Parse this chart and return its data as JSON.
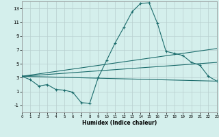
{
  "xlabel": "Humidex (Indice chaleur)",
  "bg_color": "#d4efec",
  "grid_color": "#b8cece",
  "line_color": "#1a6b6b",
  "xlim": [
    0,
    23
  ],
  "ylim": [
    -2.0,
    14.0
  ],
  "xticks": [
    0,
    1,
    2,
    3,
    4,
    5,
    6,
    7,
    8,
    9,
    10,
    11,
    12,
    13,
    14,
    15,
    16,
    17,
    18,
    19,
    20,
    21,
    22,
    23
  ],
  "yticks": [
    -1,
    1,
    3,
    5,
    7,
    9,
    11,
    13
  ],
  "main_x": [
    0,
    1,
    2,
    3,
    4,
    5,
    6,
    7,
    8,
    9,
    10,
    11,
    12,
    13,
    14,
    15,
    16,
    17,
    18,
    19,
    20,
    21,
    22,
    23
  ],
  "main_y": [
    3.2,
    2.7,
    1.8,
    2.0,
    1.3,
    1.2,
    0.9,
    -0.6,
    -0.7,
    3.0,
    5.5,
    8.0,
    10.2,
    12.5,
    13.7,
    13.8,
    10.8,
    6.8,
    6.5,
    6.2,
    5.2,
    4.8,
    3.2,
    2.5
  ],
  "trend_lines": [
    [
      0,
      3.2,
      23,
      7.2
    ],
    [
      0,
      3.2,
      23,
      5.2
    ],
    [
      0,
      3.2,
      23,
      2.5
    ]
  ]
}
